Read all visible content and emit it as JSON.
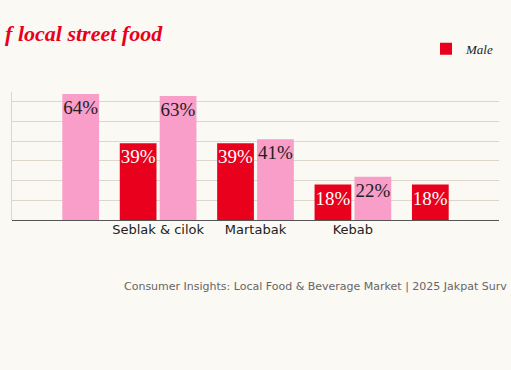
{
  "chart_data": {
    "type": "bar",
    "title": "f local street food",
    "categories": [
      null,
      "Seblak & cilok",
      "Martabak",
      "Kebab",
      null
    ],
    "series": [
      {
        "name": "Male",
        "color": "#e8001c",
        "values": [
          null,
          39,
          39,
          18,
          18
        ],
        "value_labels": [
          null,
          "39%",
          "39%",
          "18%",
          "18%"
        ]
      },
      {
        "color": "#f99dc9",
        "values": [
          64,
          63,
          41,
          22,
          null
        ],
        "value_labels": [
          "64%",
          "63%",
          "41%",
          "22%",
          null
        ]
      }
    ],
    "ylim": [
      0,
      65
    ],
    "yticks": [
      0,
      10,
      20,
      30,
      40,
      50,
      60
    ],
    "grid": true,
    "tick_labels": "x",
    "data_labels": true,
    "legend": "top right",
    "annotations": [
      "Consumer Insights: Local Food & Beverage Market | 2025 Jakpat Surv"
    ]
  }
}
